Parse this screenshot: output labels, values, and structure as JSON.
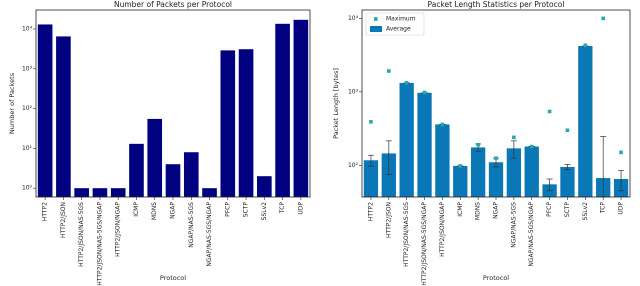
{
  "chart_data": [
    {
      "type": "bar",
      "title": "Number of Packets per Protocol",
      "x_label": "Protocol",
      "y_label": "Number of Packets",
      "categories": [
        "HTTP2",
        "HTTP2/JSON",
        "HTTP2/JSON/NAS-5GS",
        "HTTP2/JSON/NAS-5GS/NGAP",
        "HTTP2/JSON/NGAP",
        "ICMP",
        "MDNS",
        "NGAP",
        "NGAP/NAS-5GS",
        "NGAP/NAS-5GS/NGAP",
        "PFCP",
        "SCTP",
        "SSLv2",
        "TCP",
        "UDP"
      ],
      "values": [
        13000,
        6500,
        1,
        1,
        1,
        13,
        55,
        4,
        8,
        1,
        2900,
        3100,
        2,
        13500,
        17000
      ],
      "color": "#000080",
      "log_scale": true,
      "ylim": [
        0.6,
        30000
      ],
      "yticks": [
        {
          "value": 1,
          "label": "10⁰"
        },
        {
          "value": 10,
          "label": "10¹"
        },
        {
          "value": 100,
          "label": "10²"
        },
        {
          "value": 1000,
          "label": "10³"
        },
        {
          "value": 10000,
          "label": "10⁴"
        }
      ]
    },
    {
      "type": "bar",
      "title": "Packet Length Statistics per Protocol",
      "x_label": "Protocol",
      "y_label": "Packet Length [bytes]",
      "categories": [
        "HTTP2",
        "HTTP2/JSON",
        "HTTP2/JSON/NAS-5GS",
        "HTTP2/JSON/NAS-5GS/NGAP",
        "HTTP2/JSON/NGAP",
        "ICMP",
        "MDNS",
        "NGAP",
        "NGAP/NAS-5GS",
        "NGAP/NAS-5GS/NGAP",
        "PFCP",
        "SCTP",
        "SSLv2",
        "TCP",
        "UDP"
      ],
      "series": [
        {
          "name": "Maximum",
          "type": "scatter",
          "color": "#2aa7a8",
          "values": [
            390,
            1920,
            1330,
            980,
            360,
            98,
            190,
            125,
            240,
            180,
            540,
            300,
            4300,
            10000,
            150
          ]
        },
        {
          "name": "Average",
          "type": "bar",
          "color": "#0a77b7",
          "values": [
            117,
            145,
            1320,
            970,
            360,
            98,
            175,
            110,
            170,
            180,
            55,
            95,
            4200,
            67,
            65
          ],
          "errors": [
            20,
            70,
            0,
            0,
            0,
            0,
            20,
            15,
            45,
            0,
            10,
            8,
            0,
            180,
            20
          ]
        }
      ],
      "legend": "upper left",
      "log_scale": true,
      "ylim": [
        37,
        13000
      ],
      "yticks": [
        {
          "value": 100,
          "label": "10²"
        },
        {
          "value": 1000,
          "label": "10³"
        },
        {
          "value": 10000,
          "label": "10⁴"
        }
      ]
    }
  ]
}
